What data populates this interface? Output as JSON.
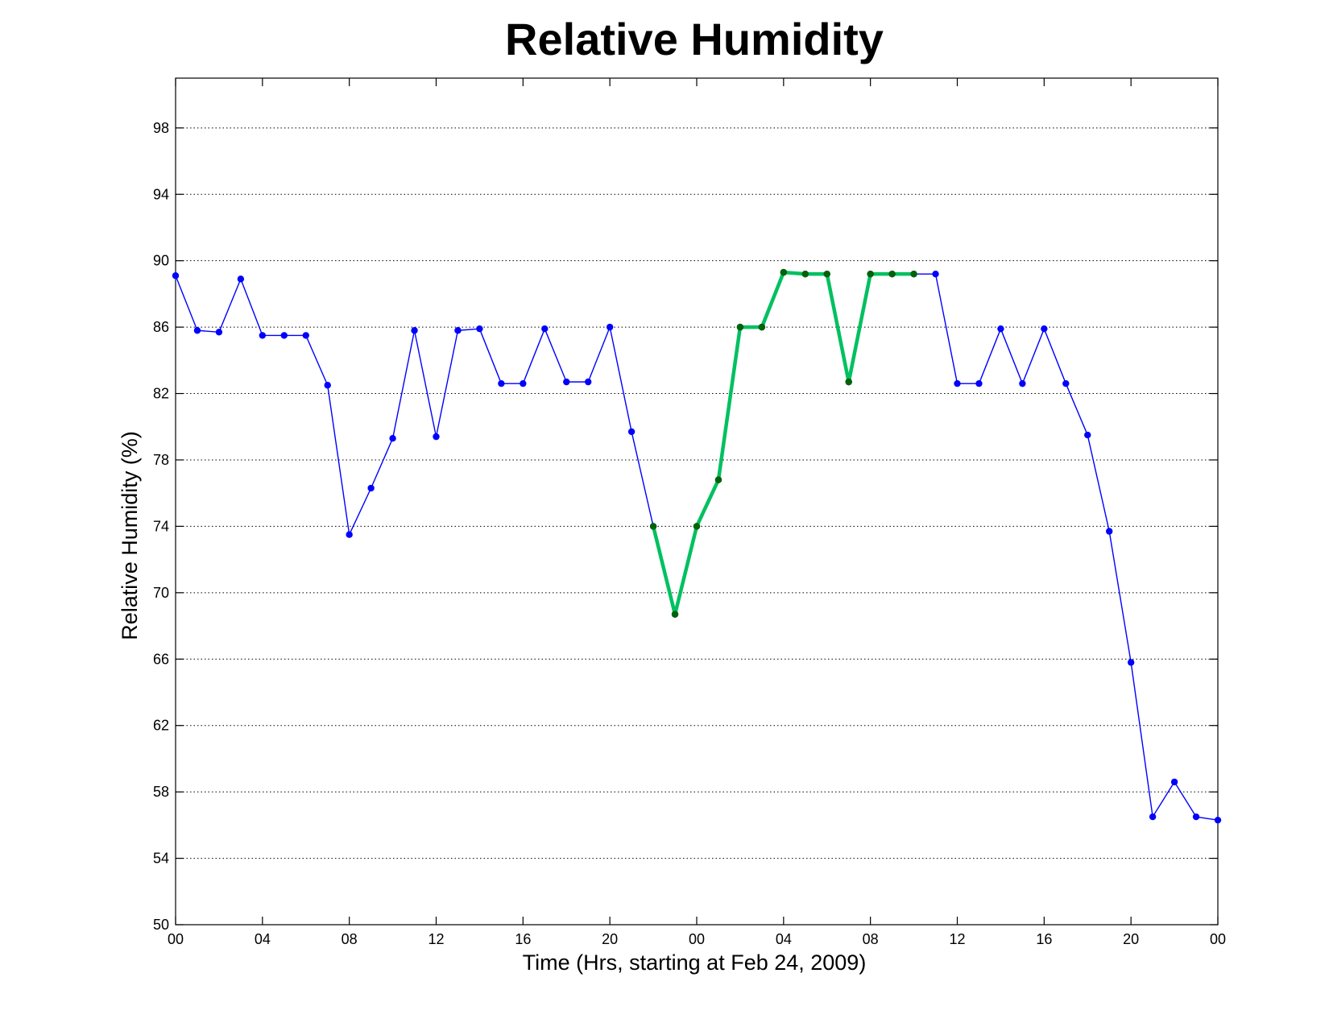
{
  "chart_data": {
    "type": "line",
    "title": "Relative Humidity",
    "xlabel": "Time (Hrs, starting at Feb 24, 2009)",
    "ylabel": "Relative Humidity (%)",
    "xlim": [
      0,
      48
    ],
    "ylim": [
      50,
      101
    ],
    "x_unit": "hours",
    "x_ticks": [
      0,
      4,
      8,
      12,
      16,
      20,
      24,
      28,
      32,
      36,
      40,
      44,
      48
    ],
    "x_tick_labels": [
      "00",
      "04",
      "08",
      "12",
      "16",
      "20",
      "00",
      "04",
      "08",
      "12",
      "16",
      "20",
      "00"
    ],
    "y_ticks": [
      50,
      54,
      58,
      62,
      66,
      70,
      74,
      78,
      82,
      86,
      90,
      94,
      98
    ],
    "grid": true,
    "series": [
      {
        "color": "#0000ff",
        "line_width": "thin",
        "marker": "dot",
        "x": [
          0,
          1,
          2,
          3,
          4,
          5,
          6,
          7,
          8,
          9,
          10,
          11,
          12,
          13,
          14,
          15,
          16,
          17,
          18,
          19,
          20,
          21,
          22,
          23,
          24,
          25,
          26,
          27,
          28,
          29,
          30,
          31,
          32,
          33,
          34,
          35,
          36,
          37,
          38,
          39,
          40,
          41,
          42,
          43,
          44,
          45,
          46,
          47,
          48
        ],
        "values": [
          89.1,
          85.8,
          85.7,
          88.9,
          85.5,
          85.5,
          85.5,
          82.5,
          73.5,
          76.3,
          79.3,
          85.8,
          79.4,
          85.8,
          85.9,
          82.6,
          82.6,
          85.9,
          82.7,
          82.7,
          86.0,
          79.7,
          74.0,
          68.7,
          74.0,
          76.8,
          86.0,
          86.0,
          89.3,
          89.2,
          89.2,
          82.7,
          89.2,
          89.2,
          89.2,
          89.2,
          82.6,
          82.6,
          85.9,
          82.6,
          85.9,
          82.6,
          79.5,
          73.7,
          65.8,
          56.5,
          58.6,
          56.5,
          56.3
        ]
      },
      {
        "color": "#00c060",
        "line_width": "thick",
        "marker": "dot",
        "marker_color": "#006400",
        "x": [
          22,
          23,
          24,
          25,
          26,
          27,
          28,
          29,
          30,
          31,
          32,
          33,
          34
        ],
        "values": [
          74.0,
          68.7,
          74.0,
          76.8,
          86.0,
          86.0,
          89.3,
          89.2,
          89.2,
          82.7,
          89.2,
          89.2,
          89.2
        ]
      }
    ]
  }
}
